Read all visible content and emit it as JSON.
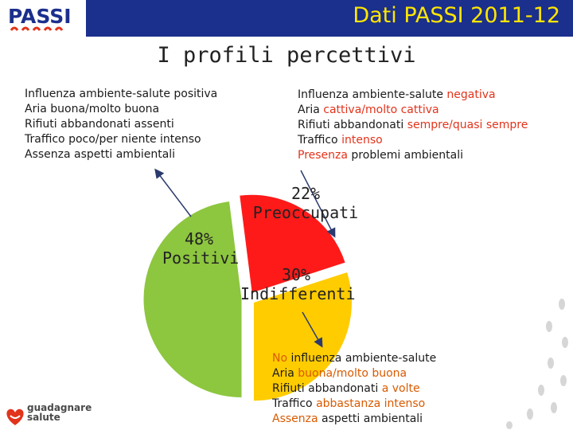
{
  "header": {
    "title": "Dati PASSI 2011-12",
    "logo_text": "PASSI",
    "accent": "#1b2f8c",
    "title_color": "#ffe600"
  },
  "page_title": "I profili percettivi",
  "profiles": {
    "positive": {
      "lines": [
        "Influenza ambiente-salute positiva",
        "Aria buona/molto buona",
        "Rifiuti abbandonati assenti",
        "Traffico poco/per niente intenso",
        "Assenza aspetti ambientali"
      ]
    },
    "negative": {
      "lines": [
        {
          "pre": "Influenza ambiente-salute ",
          "hl": "negativa",
          "post": ""
        },
        {
          "pre": "Aria ",
          "hl": "cattiva/molto cattiva",
          "post": ""
        },
        {
          "pre": "Rifiuti abbandonati ",
          "hl": "sempre/quasi sempre",
          "post": ""
        },
        {
          "pre": "Traffico ",
          "hl": "intenso",
          "post": ""
        },
        {
          "pre": "",
          "hl": "Presenza",
          "post": " problemi ambientali"
        }
      ]
    },
    "neutral": {
      "lines": [
        {
          "pre": "",
          "hl": "No",
          "post": " influenza ambiente-salute"
        },
        {
          "pre": "Aria ",
          "hl": "buona/molto buona",
          "post": ""
        },
        {
          "pre": "Rifiuti abbandonati ",
          "hl": "a volte",
          "post": ""
        },
        {
          "pre": "Traffico ",
          "hl": "abbastanza intenso",
          "post": ""
        },
        {
          "pre": "",
          "hl": "Assenza",
          "post": " aspetti ambientali"
        }
      ]
    }
  },
  "chart_data": {
    "type": "pie",
    "title": "",
    "slices": [
      {
        "label": "48%",
        "name": "Positivi",
        "value": 48,
        "color": "#8dc63f"
      },
      {
        "label": "22%",
        "name": "Preoccupati",
        "value": 22,
        "color": "#ff1a1a"
      },
      {
        "label": "30%",
        "name": "Indifferenti",
        "value": 30,
        "color": "#ffcc00"
      }
    ]
  },
  "footer_logo": {
    "line1": "guadagnare",
    "line2": "salute"
  }
}
